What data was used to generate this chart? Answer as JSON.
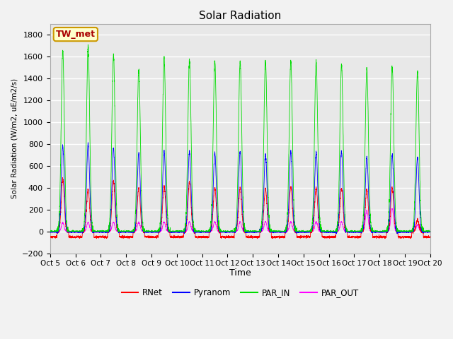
{
  "title": "Solar Radiation",
  "ylabel": "Solar Radiation (W/m2, uE/m2/s)",
  "xlabel": "Time",
  "ylim": [
    -200,
    1900
  ],
  "yticks": [
    -200,
    0,
    200,
    400,
    600,
    800,
    1000,
    1200,
    1400,
    1600,
    1800
  ],
  "n_days": 15,
  "xtick_labels": [
    "Oct 5",
    "Oct 6",
    "Oct 7",
    "Oct 8",
    "Oct 9",
    "Oct 10",
    "Oct 11",
    "Oct 12",
    "Oct 13",
    "Oct 14",
    "Oct 15",
    "Oct 16",
    "Oct 17",
    "Oct 18",
    "Oct 19",
    "Oct 20"
  ],
  "colors": {
    "RNet": "#ff0000",
    "Pyranom": "#0000ff",
    "PAR_IN": "#00dd00",
    "PAR_OUT": "#ff00ff"
  },
  "legend_label": "TW_met",
  "legend_box_color": "#ffffcc",
  "legend_box_edge": "#cc9900",
  "plot_bg": "#e8e8e8",
  "fig_bg": "#f2f2f2",
  "grid_color": "#ffffff",
  "peaks": {
    "RNet": [
      480,
      390,
      460,
      400,
      420,
      450,
      400,
      400,
      395,
      410,
      400,
      395,
      380,
      400,
      100
    ],
    "Pyranom": [
      780,
      800,
      760,
      720,
      730,
      730,
      720,
      730,
      710,
      730,
      730,
      730,
      680,
      695,
      680
    ],
    "PAR_IN": [
      1650,
      1690,
      1615,
      1490,
      1580,
      1570,
      1560,
      1555,
      1555,
      1560,
      1555,
      1525,
      1490,
      1500,
      1470
    ],
    "PAR_OUT": [
      80,
      85,
      85,
      85,
      90,
      90,
      90,
      90,
      90,
      90,
      90,
      90,
      195,
      210,
      60
    ]
  },
  "RNet_night": -50,
  "Pyranom_night": -5,
  "PAR_IN_night": 0,
  "PAR_OUT_night": -5
}
